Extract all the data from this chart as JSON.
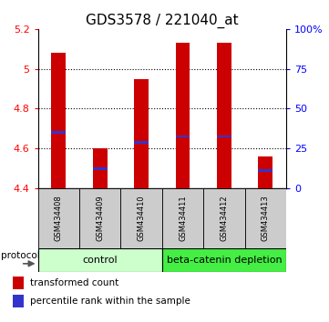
{
  "title": "GDS3578 / 221040_at",
  "samples": [
    "GSM434408",
    "GSM434409",
    "GSM434410",
    "GSM434411",
    "GSM434412",
    "GSM434413"
  ],
  "bar_tops": [
    5.08,
    4.6,
    4.95,
    5.13,
    5.13,
    4.56
  ],
  "bar_bottom": 4.4,
  "blue_marks": [
    4.68,
    4.5,
    4.63,
    4.66,
    4.66,
    4.49
  ],
  "ylim_left": [
    4.4,
    5.2
  ],
  "ylim_right": [
    0,
    100
  ],
  "yticks_left": [
    4.4,
    4.6,
    4.8,
    5.0,
    5.2
  ],
  "ytick_labels_left": [
    "4.4",
    "4.6",
    "4.8",
    "5",
    "5.2"
  ],
  "yticks_right": [
    0,
    25,
    50,
    75,
    100
  ],
  "ytick_labels_right": [
    "0",
    "25",
    "50",
    "75",
    "100%"
  ],
  "grid_lines": [
    4.6,
    4.8,
    5.0
  ],
  "bar_color": "#cc0000",
  "blue_color": "#3333cc",
  "groups": [
    {
      "label": "control",
      "indices": [
        0,
        1,
        2
      ],
      "color": "#ccffcc"
    },
    {
      "label": "beta-catenin depletion",
      "indices": [
        3,
        4,
        5
      ],
      "color": "#44ee44"
    }
  ],
  "protocol_label": "protocol",
  "legend_red": "transformed count",
  "legend_blue": "percentile rank within the sample",
  "title_fontsize": 11,
  "tick_fontsize": 8,
  "sample_fontsize": 6,
  "group_fontsize": 8,
  "legend_fontsize": 7.5,
  "bar_width": 0.35,
  "background_color": "#ffffff",
  "label_box_color": "#cccccc",
  "n_samples": 6
}
